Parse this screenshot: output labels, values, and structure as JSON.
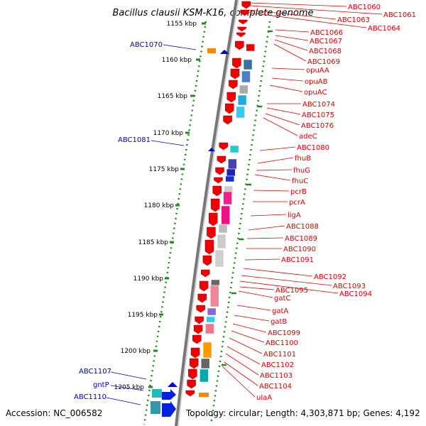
{
  "title": "Bacillus clausii KSM-K16, complete genome",
  "accession_text": "Accession: NC_006582",
  "topology_text": "Topology: circular; Length: 4,303,871 bp; Genes: 4,192",
  "colors": {
    "plus_strand_label": "#0000cc",
    "minus_strand_label": "#dd0000",
    "tick": "#228822",
    "backbone": "#777777"
  },
  "kbp_ticks": [
    "1155 kbp",
    "1160 kbp",
    "1165 kbp",
    "1170 kbp",
    "1175 kbp",
    "1180 kbp",
    "1185 kbp",
    "1190 kbp",
    "1195 kbp",
    "1200 kbp",
    "1205 kbp"
  ],
  "right_labels": [
    "ABC1060",
    "ABC1061",
    "ABC1063",
    "ABC1064",
    "ABC1066",
    "ABC1067",
    "ABC1068",
    "ABC1069",
    "opuAA",
    "opuAB",
    "opuAC",
    "ABC1074",
    "ABC1075",
    "ABC1076",
    "adeC",
    "ABC1080",
    "fhuB",
    "fhuG",
    "fhuC",
    "pcrB",
    "pcrA",
    "ligA",
    "ABC1088",
    "ABC1089",
    "ABC1090",
    "ABC1091",
    "ABC1092",
    "ABC1093",
    "ABC1094",
    "ABC1095",
    "gatC",
    "gatA",
    "gatB",
    "ABC1099",
    "ABC1100",
    "ABC1101",
    "ABC1102",
    "ABC1103",
    "ABC1104",
    "ulaA"
  ],
  "left_labels": [
    "ABC1070",
    "ABC1081",
    "ABC1107",
    "gntP",
    "ABC1110"
  ]
}
